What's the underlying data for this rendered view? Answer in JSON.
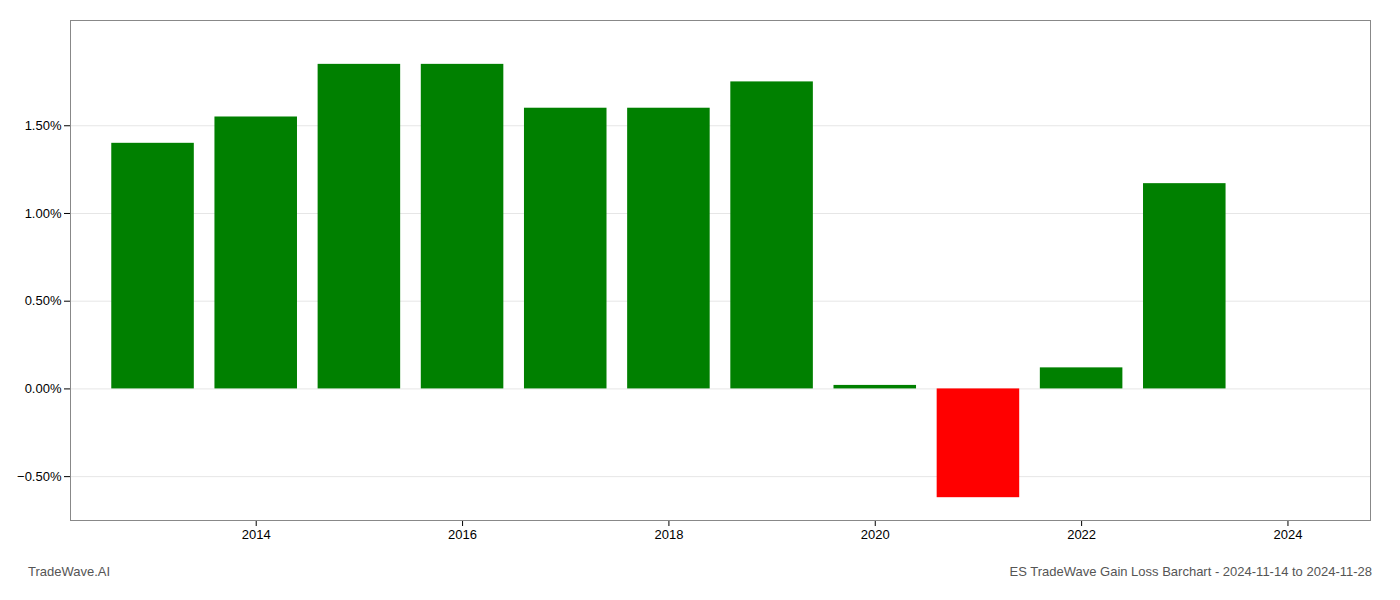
{
  "chart_data": {
    "type": "bar",
    "x": [
      2013,
      2014,
      2015,
      2016,
      2017,
      2018,
      2019,
      2020,
      2021,
      2022,
      2023
    ],
    "values": [
      1.4,
      1.55,
      1.85,
      1.85,
      1.6,
      1.6,
      1.75,
      0.02,
      -0.62,
      0.12,
      1.17
    ],
    "colors": [
      "#008000",
      "#008000",
      "#008000",
      "#008000",
      "#008000",
      "#008000",
      "#008000",
      "#008000",
      "#ff0000",
      "#008000",
      "#008000"
    ],
    "xlim": [
      2012.2,
      2024.8
    ],
    "xticks": [
      2014,
      2016,
      2018,
      2020,
      2022,
      2024
    ],
    "ylim": [
      -0.75,
      2.1
    ],
    "yticks": [
      {
        "value": -0.5,
        "label": "−0.50%"
      },
      {
        "value": 0,
        "label": "0.00%"
      },
      {
        "value": 0.5,
        "label": "0.50%"
      },
      {
        "value": 1,
        "label": "1.00%"
      },
      {
        "value": 1.5,
        "label": "1.50%"
      }
    ],
    "grid": true,
    "annotations": [
      "TradeWave.AI",
      "ES TradeWave Gain Loss Barchart - 2024-11-14 to 2024-11-28"
    ]
  }
}
